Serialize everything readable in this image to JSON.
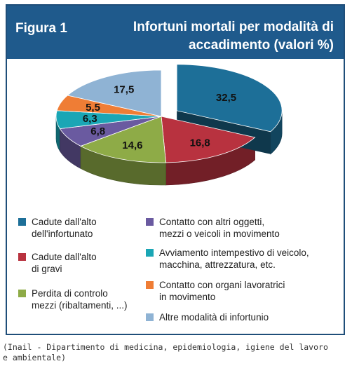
{
  "figure": {
    "label": "Figura 1",
    "title": "Infortuni mortali per modalità di accadimento (valori %)"
  },
  "chart_data": {
    "type": "pie",
    "title": "Infortuni mortali per modalità di accadimento (valori %)",
    "unit": "%",
    "slices": [
      {
        "label": "Cadute dall'alto dell'infortunato",
        "value": 32.5,
        "display": "32,5",
        "color": "#1d6f98"
      },
      {
        "label": "Cadute dall'alto di gravi",
        "value": 16.8,
        "display": "16,8",
        "color": "#b8323f"
      },
      {
        "label": "Perdita di controlo mezzi (ribaltamenti, ...)",
        "value": 14.6,
        "display": "14,6",
        "color": "#8eab47"
      },
      {
        "label": "Contatto con altri oggetti, mezzi o veicoli in movimento",
        "value": 6.8,
        "display": "6,8",
        "color": "#6a5aa0"
      },
      {
        "label": "Avviamento intempestivo di veicolo, macchina, attrezzatura, etc.",
        "value": 6.3,
        "display": "6,3",
        "color": "#1aa6b5"
      },
      {
        "label": "Contatto con organi lavoratrici in movimento",
        "value": 5.5,
        "display": "5,5",
        "color": "#ef7d35"
      },
      {
        "label": "Altre modalità di infortunio",
        "value": 17.5,
        "display": "17,5",
        "color": "#8fb3d4"
      }
    ],
    "legend": [
      {
        "text": "Cadute dall'alto\ndell'infortunato",
        "color": "#1d6f98"
      },
      {
        "text": "Cadute dall'alto\ndi gravi",
        "color": "#b8323f"
      },
      {
        "text": "Perdita di controlo\nmezzi (ribaltamenti, ...)",
        "color": "#8eab47"
      },
      {
        "text": "Contatto con altri oggetti,\nmezzi o veicoli in movimento",
        "color": "#6a5aa0"
      },
      {
        "text": "Avviamento intempestivo di veicolo,\nmacchina, attrezzatura, etc.",
        "color": "#1aa6b5"
      },
      {
        "text": "Contatto con organi lavoratrici\nin movimento",
        "color": "#ef7d35"
      },
      {
        "text": "Altre modalità di infortunio",
        "color": "#8fb3d4"
      }
    ],
    "legend_placement": "bottom"
  },
  "source": "(Inail - Dipartimento di medicina, epidemiologia, igiene del lavoro\ne ambientale)"
}
